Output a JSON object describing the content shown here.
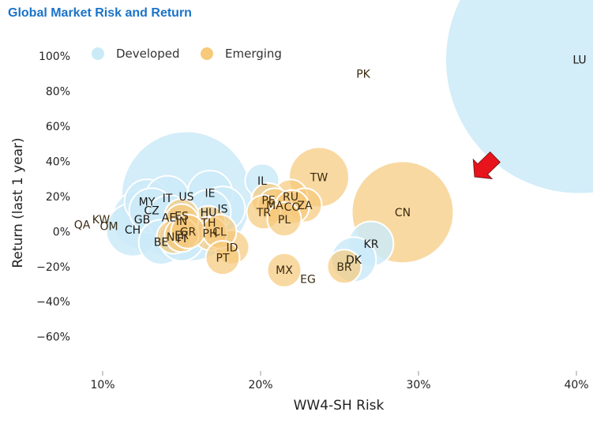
{
  "title": "Global Market Risk and Return",
  "colors": {
    "developed": "#cbeaf8",
    "emerging": "#f7c97a",
    "title": "#1a73c8",
    "arrow": "#e8141c"
  },
  "chart_data": {
    "type": "scatter",
    "xlabel": "WW4-SH Risk",
    "ylabel": "Return (last 1 year)",
    "xlim": [
      0.085,
      0.405
    ],
    "ylim": [
      -0.75,
      1.05
    ],
    "xticks": [
      0.1,
      0.2,
      0.3,
      0.4
    ],
    "xtick_labels": [
      "10%",
      "20%",
      "30%",
      "40%"
    ],
    "yticks": [
      1.0,
      0.8,
      0.6,
      0.4,
      0.2,
      0.0,
      -0.2,
      -0.4,
      -0.6
    ],
    "ytick_labels": [
      "100%",
      "80%",
      "60%",
      "40%",
      "20%",
      "0%",
      "−20%",
      "−40%",
      "−60%"
    ],
    "legend": {
      "position": "top-left",
      "entries": [
        "Developed",
        "Emerging"
      ]
    },
    "grid": false,
    "annotation": "arrow pointing at CN",
    "series": [
      {
        "name": "Developed",
        "points": [
          {
            "label": "US",
            "x": 0.153,
            "y": 0.2,
            "size": 22
          },
          {
            "label": "MY",
            "x": 0.128,
            "y": 0.17,
            "size": 2
          },
          {
            "label": "IT",
            "x": 0.141,
            "y": 0.19,
            "size": 2
          },
          {
            "label": "CZ",
            "x": 0.131,
            "y": 0.12,
            "size": 2
          },
          {
            "label": "AE",
            "x": 0.142,
            "y": 0.08,
            "size": 2
          },
          {
            "label": "GB",
            "x": 0.125,
            "y": 0.07,
            "size": 4
          },
          {
            "label": "CH",
            "x": 0.119,
            "y": 0.01,
            "size": 3
          },
          {
            "label": "BE",
            "x": 0.137,
            "y": -0.06,
            "size": 2
          },
          {
            "label": "FI",
            "x": 0.15,
            "y": -0.04,
            "size": 2
          },
          {
            "label": "IE",
            "x": 0.168,
            "y": 0.22,
            "size": 2
          },
          {
            "label": "IS",
            "x": 0.176,
            "y": 0.13,
            "size": 2
          },
          {
            "label": "LU",
            "x": 0.402,
            "y": 0.98,
            "size": 100
          },
          {
            "label": "KR",
            "x": 0.27,
            "y": -0.07,
            "size": 2
          },
          {
            "label": "DK",
            "x": 0.259,
            "y": -0.16,
            "size": 2
          },
          {
            "label": "HU",
            "x": 0.167,
            "y": 0.11,
            "size": 2
          },
          {
            "label": "IL",
            "x": 0.201,
            "y": 0.29,
            "size": 1
          }
        ]
      },
      {
        "name": "Emerging",
        "points": [
          {
            "label": "CN",
            "x": 0.29,
            "y": 0.11,
            "size": 13
          },
          {
            "label": "TW",
            "x": 0.237,
            "y": 0.31,
            "size": 4
          },
          {
            "label": "PK",
            "x": 0.265,
            "y": 0.9,
            "size": 0
          },
          {
            "label": "RU",
            "x": 0.219,
            "y": 0.2,
            "size": 1
          },
          {
            "label": "PE",
            "x": 0.205,
            "y": 0.18,
            "size": 1
          },
          {
            "label": "ZA",
            "x": 0.228,
            "y": 0.15,
            "size": 1
          },
          {
            "label": "MA",
            "x": 0.209,
            "y": 0.15,
            "size": 1
          },
          {
            "label": "CO",
            "x": 0.22,
            "y": 0.14,
            "size": 1
          },
          {
            "label": "TR",
            "x": 0.202,
            "y": 0.11,
            "size": 1
          },
          {
            "label": "PL",
            "x": 0.215,
            "y": 0.07,
            "size": 1
          },
          {
            "label": "TH",
            "x": 0.167,
            "y": 0.05,
            "size": 1
          },
          {
            "label": "ID",
            "x": 0.182,
            "y": -0.09,
            "size": 1
          },
          {
            "label": "PH",
            "x": 0.168,
            "y": -0.01,
            "size": 1
          },
          {
            "label": "CL",
            "x": 0.174,
            "y": 0.0,
            "size": 1
          },
          {
            "label": "PT",
            "x": 0.176,
            "y": -0.15,
            "size": 1
          },
          {
            "label": "MX",
            "x": 0.215,
            "y": -0.22,
            "size": 1
          },
          {
            "label": "BR",
            "x": 0.253,
            "y": -0.2,
            "size": 1
          },
          {
            "label": "EG",
            "x": 0.23,
            "y": -0.27,
            "size": 0
          },
          {
            "label": "QA",
            "x": 0.087,
            "y": 0.04,
            "size": 0
          },
          {
            "label": "KW",
            "x": 0.099,
            "y": 0.07,
            "size": 0
          },
          {
            "label": "OM",
            "x": 0.104,
            "y": 0.03,
            "size": 0
          },
          {
            "label": "ES",
            "x": 0.15,
            "y": 0.09,
            "size": 1
          },
          {
            "label": "IN",
            "x": 0.15,
            "y": 0.06,
            "size": 1
          },
          {
            "label": "NL",
            "x": 0.145,
            "y": -0.03,
            "size": 1
          },
          {
            "label": "FR",
            "x": 0.15,
            "y": -0.02,
            "size": 1
          },
          {
            "label": "GR",
            "x": 0.154,
            "y": 0.0,
            "size": 1
          }
        ]
      }
    ]
  }
}
